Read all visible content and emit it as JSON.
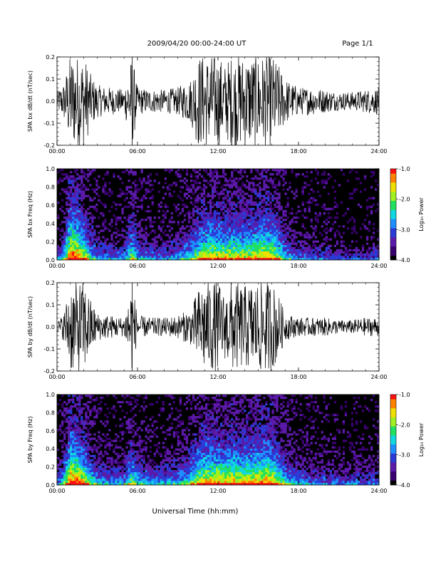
{
  "header": {
    "title": "2009/04/20   00:00-24:00 UT",
    "page": "Page 1/1"
  },
  "footer": {
    "xlabel": "Universal Time (hh:mm)"
  },
  "colors": {
    "background": "#ffffff",
    "trace": "#000000",
    "colormap": [
      "#000000",
      "#3a0070",
      "#5b1aa8",
      "#2a3bd8",
      "#1f8fff",
      "#10d8e0",
      "#20e060",
      "#a0f020",
      "#f0e000",
      "#ff8000",
      "#ff1010"
    ]
  },
  "chart_data": [
    {
      "type": "line",
      "ylabel": "SPA bx dB/dt (nT/sec)",
      "xlim": [
        "00:00",
        "24:00"
      ],
      "ylim": [
        -0.2,
        0.2
      ],
      "x_ticks": [
        "00:00",
        "06:00",
        "12:00",
        "18:00",
        "24:00"
      ],
      "y_ticks": [
        "-0.2",
        "-0.1",
        "0.0",
        "0.1",
        "0.2"
      ],
      "x": [
        0,
        0.5,
        1.0,
        1.5,
        2.0,
        2.5,
        3.0,
        4.0,
        5.0,
        5.6,
        6.0,
        7.0,
        8.0,
        9.0,
        10.0,
        10.5,
        11.0,
        12.0,
        12.5,
        13.0,
        14.0,
        15.0,
        15.5,
        16.0,
        16.5,
        17.0,
        18.0,
        19.0,
        20.0,
        21.0,
        22.0,
        23.0,
        24.0
      ],
      "series": [
        {
          "values": [
            0.04,
            0.08,
            0.2,
            0.2,
            0.2,
            0.12,
            0.07,
            0.06,
            0.05,
            0.2,
            0.06,
            0.05,
            0.05,
            0.06,
            0.1,
            0.2,
            0.2,
            0.2,
            0.16,
            0.2,
            0.2,
            0.2,
            0.2,
            0.2,
            0.16,
            0.1,
            0.06,
            0.06,
            0.05,
            0.04,
            0.04,
            0.05,
            0.06
          ]
        }
      ],
      "grid": false
    },
    {
      "type": "heatmap",
      "ylabel": "SPA bx Freq (Hz)",
      "xlim": [
        "00:00",
        "24:00"
      ],
      "ylim": [
        0.0,
        1.0
      ],
      "x_ticks": [
        "00:00",
        "06:00",
        "12:00",
        "18:00",
        "24:00"
      ],
      "y_ticks": [
        "0.0",
        "0.2",
        "0.4",
        "0.6",
        "0.8",
        "1.0"
      ],
      "colorbar": {
        "label": "Log₁₀ Power",
        "range": [
          -4.0,
          -1.0
        ],
        "ticks": [
          "-1.0",
          "-2.0",
          "-3.0",
          "-4.0"
        ]
      },
      "x": [
        0,
        0.5,
        1.0,
        1.5,
        2.0,
        2.5,
        3.0,
        4.0,
        5.0,
        5.6,
        6.0,
        7.0,
        8.0,
        9.0,
        10.0,
        10.5,
        11.0,
        12.0,
        12.5,
        13.0,
        14.0,
        15.0,
        15.5,
        16.0,
        16.5,
        17.0,
        18.0,
        19.0,
        20.0,
        21.0,
        22.0,
        23.0,
        24.0
      ],
      "activity": [
        0.25,
        0.5,
        1.0,
        0.95,
        0.75,
        0.55,
        0.4,
        0.35,
        0.35,
        0.7,
        0.45,
        0.35,
        0.35,
        0.4,
        0.55,
        0.7,
        0.8,
        0.8,
        0.75,
        0.8,
        0.75,
        0.8,
        0.85,
        0.8,
        0.7,
        0.5,
        0.35,
        0.3,
        0.3,
        0.25,
        0.25,
        0.25,
        0.3
      ]
    },
    {
      "type": "line",
      "ylabel": "SPA by dB/dt (nT/sec)",
      "xlim": [
        "00:00",
        "24:00"
      ],
      "ylim": [
        -0.2,
        0.2
      ],
      "x_ticks": [
        "00:00",
        "06:00",
        "12:00",
        "18:00",
        "24:00"
      ],
      "y_ticks": [
        "-0.2",
        "-0.1",
        "0.0",
        "0.1",
        "0.2"
      ],
      "x": [
        0,
        0.5,
        1.0,
        1.5,
        2.0,
        2.5,
        3.0,
        4.0,
        5.0,
        5.6,
        6.0,
        7.0,
        8.0,
        9.0,
        10.0,
        10.5,
        11.0,
        12.0,
        12.5,
        13.0,
        14.0,
        15.0,
        15.5,
        16.0,
        16.5,
        17.0,
        18.0,
        19.0,
        20.0,
        21.0,
        22.0,
        23.0,
        24.0
      ],
      "series": [
        {
          "values": [
            0.02,
            0.06,
            0.2,
            0.2,
            0.2,
            0.12,
            0.06,
            0.05,
            0.04,
            0.2,
            0.05,
            0.04,
            0.04,
            0.05,
            0.08,
            0.16,
            0.2,
            0.2,
            0.14,
            0.2,
            0.18,
            0.2,
            0.2,
            0.2,
            0.14,
            0.06,
            0.04,
            0.04,
            0.04,
            0.03,
            0.03,
            0.04,
            0.04
          ]
        }
      ],
      "grid": false
    },
    {
      "type": "heatmap",
      "ylabel": "SPA by Freq (Hz)",
      "xlim": [
        "00:00",
        "24:00"
      ],
      "ylim": [
        0.0,
        1.0
      ],
      "x_ticks": [
        "00:00",
        "06:00",
        "12:00",
        "18:00",
        "24:00"
      ],
      "y_ticks": [
        "0.0",
        "0.2",
        "0.4",
        "0.6",
        "0.8",
        "1.0"
      ],
      "colorbar": {
        "label": "Log₁₀ Power",
        "range": [
          -4.0,
          -1.0
        ],
        "ticks": [
          "-1.0",
          "-2.0",
          "-3.0",
          "-4.0"
        ]
      },
      "x": [
        0,
        0.5,
        1.0,
        1.5,
        2.0,
        2.5,
        3.0,
        4.0,
        5.0,
        5.6,
        6.0,
        7.0,
        8.0,
        9.0,
        10.0,
        10.5,
        11.0,
        12.0,
        12.5,
        13.0,
        14.0,
        15.0,
        15.5,
        16.0,
        16.5,
        17.0,
        18.0,
        19.0,
        20.0,
        21.0,
        22.0,
        23.0,
        24.0
      ],
      "activity": [
        0.3,
        0.55,
        1.0,
        0.95,
        0.8,
        0.6,
        0.45,
        0.4,
        0.4,
        0.7,
        0.5,
        0.4,
        0.4,
        0.45,
        0.6,
        0.75,
        0.85,
        0.85,
        0.8,
        0.85,
        0.8,
        0.85,
        0.9,
        0.85,
        0.75,
        0.55,
        0.4,
        0.35,
        0.35,
        0.3,
        0.3,
        0.3,
        0.35
      ]
    }
  ]
}
